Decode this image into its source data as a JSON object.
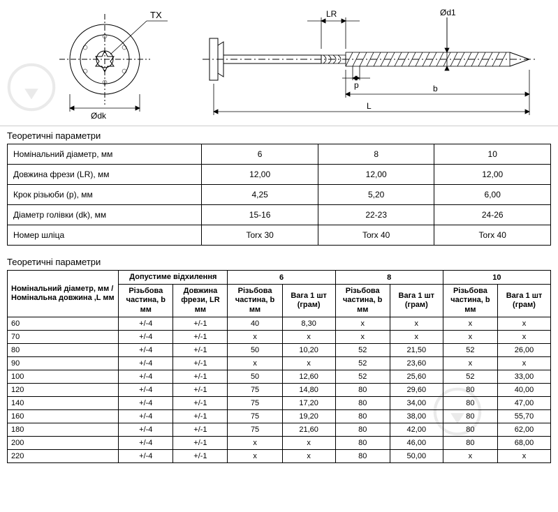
{
  "diagram": {
    "labels": {
      "TX": "TX",
      "dk": "Ødk",
      "LR": "LR",
      "p": "p",
      "d1": "Ød1",
      "b": "b",
      "L": "L"
    },
    "colors": {
      "line": "#000000",
      "dim": "#000000",
      "hatch": "#000000"
    }
  },
  "table1": {
    "title": "Теоретичні параметри",
    "rows": [
      {
        "label": "Номінальний діаметр, мм",
        "v": [
          "6",
          "8",
          "10"
        ]
      },
      {
        "label": "Довжина фрези (LR), мм",
        "v": [
          "12,00",
          "12,00",
          "12,00"
        ]
      },
      {
        "label": "Крок різьюби (p), мм",
        "v": [
          "4,25",
          "5,20",
          "6,00"
        ]
      },
      {
        "label": "Діаметр голівки (dk), мм",
        "v": [
          "15-16",
          "22-23",
          "24-26"
        ]
      },
      {
        "label": "Номер шліца",
        "v": [
          "Torx 30",
          "Torx 40",
          "Torx 40"
        ]
      }
    ]
  },
  "table2": {
    "title": "Теоретичні параметри",
    "header": {
      "nom": "Номінальний діаметр, мм / Номінальна довжина ,L мм",
      "tol": "Допустиме відхилення",
      "g6": "6",
      "g8": "8",
      "g10": "10",
      "sub": {
        "b": "Різьбова частина, b мм",
        "lr": "Довжина фрези, LR мм",
        "bb": "Різьбова частина, b мм",
        "w": "Вага 1 шт (грам)"
      }
    },
    "rows": [
      {
        "l": "60",
        "tb": "+/-4",
        "tl": "+/-1",
        "d": [
          "40",
          "8,30",
          "x",
          "x",
          "x",
          "x"
        ]
      },
      {
        "l": "70",
        "tb": "+/-4",
        "tl": "+/-1",
        "d": [
          "x",
          "x",
          "x",
          "x",
          "x",
          "x"
        ]
      },
      {
        "l": "80",
        "tb": "+/-4",
        "tl": "+/-1",
        "d": [
          "50",
          "10,20",
          "52",
          "21,50",
          "52",
          "26,00"
        ]
      },
      {
        "l": "90",
        "tb": "+/-4",
        "tl": "+/-1",
        "d": [
          "x",
          "x",
          "52",
          "23,60",
          "x",
          "x"
        ]
      },
      {
        "l": "100",
        "tb": "+/-4",
        "tl": "+/-1",
        "d": [
          "50",
          "12,60",
          "52",
          "25,60",
          "52",
          "33,00"
        ]
      },
      {
        "l": "120",
        "tb": "+/-4",
        "tl": "+/-1",
        "d": [
          "75",
          "14,80",
          "80",
          "29,60",
          "80",
          "40,00"
        ]
      },
      {
        "l": "140",
        "tb": "+/-4",
        "tl": "+/-1",
        "d": [
          "75",
          "17,20",
          "80",
          "34,00",
          "80",
          "47,00"
        ]
      },
      {
        "l": "160",
        "tb": "+/-4",
        "tl": "+/-1",
        "d": [
          "75",
          "19,20",
          "80",
          "38,00",
          "80",
          "55,70"
        ]
      },
      {
        "l": "180",
        "tb": "+/-4",
        "tl": "+/-1",
        "d": [
          "75",
          "21,60",
          "80",
          "42,00",
          "80",
          "62,00"
        ]
      },
      {
        "l": "200",
        "tb": "+/-4",
        "tl": "+/-1",
        "d": [
          "x",
          "x",
          "80",
          "46,00",
          "80",
          "68,00"
        ]
      },
      {
        "l": "220",
        "tb": "+/-4",
        "tl": "+/-1",
        "d": [
          "x",
          "x",
          "80",
          "50,00",
          "x",
          "x"
        ]
      }
    ]
  }
}
